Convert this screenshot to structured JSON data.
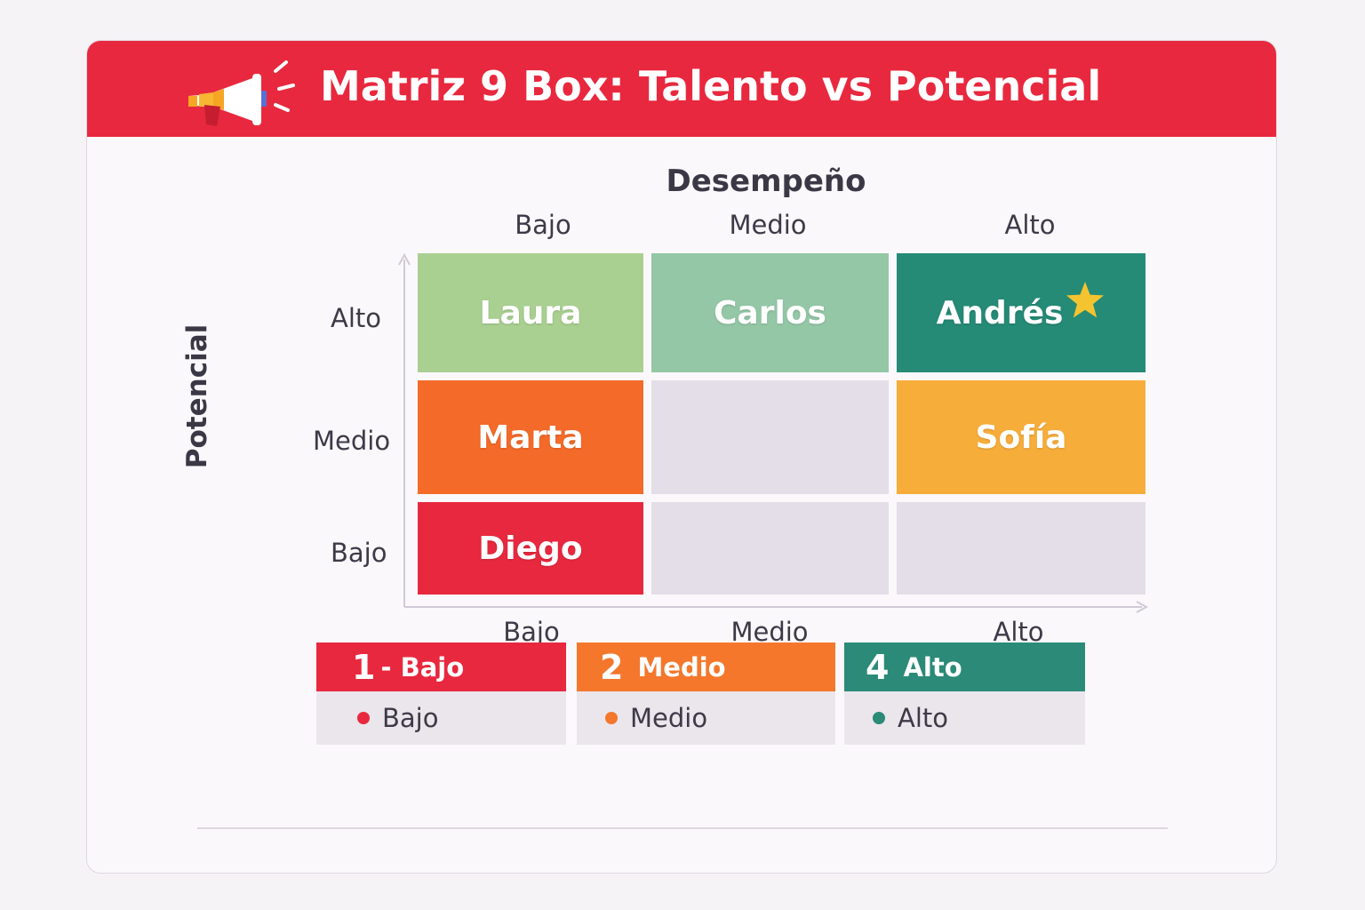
{
  "title": "Matriz 9 Box: Talento vs Potencial",
  "axes": {
    "x_title": "Desempeño",
    "y_title": "Potencial",
    "x_levels_top": [
      "Bajo",
      "Medio",
      "Alto"
    ],
    "x_levels_bottom": [
      "Bajo",
      "Medio",
      "Alto"
    ],
    "y_levels": [
      "Alto",
      "Medio",
      "Bajo"
    ]
  },
  "grid": {
    "rows": [
      [
        {
          "name": "Laura",
          "color": "#a9cf91"
        },
        {
          "name": "Carlos",
          "color": "#93c7a6"
        },
        {
          "name": "Andrés",
          "color": "#258a76",
          "star": true
        }
      ],
      [
        {
          "name": "Marta",
          "color": "#f46a28"
        },
        {
          "name": "",
          "color": "#e3dee8"
        },
        {
          "name": "Sofía",
          "color": "#f7ad3a"
        }
      ],
      [
        {
          "name": "Diego",
          "color": "#e8283e"
        },
        {
          "name": "",
          "color": "#e3dee8"
        },
        {
          "name": "",
          "color": "#e3dee8"
        }
      ]
    ]
  },
  "legend": [
    {
      "number": "1",
      "label": "- Bajo",
      "item": "Bajo",
      "color": "#e8283e"
    },
    {
      "number": "2",
      "label": "Medio",
      "item": "Medio",
      "color": "#f4772c"
    },
    {
      "number": "4",
      "label": "Alto",
      "item": "Alto",
      "color": "#2b8a78"
    }
  ],
  "colors": {
    "header": "#e8283e",
    "star": "#f4c430",
    "empty_cell": "#e3dee8"
  },
  "icons": {
    "header": "megaphone-icon",
    "top_performer": "star-icon"
  }
}
